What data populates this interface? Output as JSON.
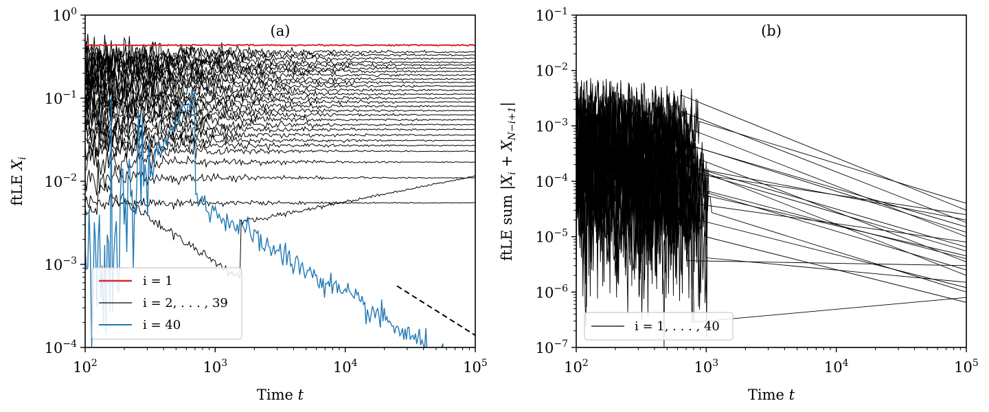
{
  "chart_data": [
    {
      "type": "line",
      "panel_label": "(a)",
      "xlabel": "Time t",
      "ylabel": "ftLE X_i",
      "x_scale": "log",
      "y_scale": "log",
      "xlim": [
        100,
        100000
      ],
      "ylim": [
        0.0001,
        1
      ],
      "x_tick_labels": [
        {
          "base": "10",
          "exp": "2",
          "value": 100
        },
        {
          "base": "10",
          "exp": "3",
          "value": 1000
        },
        {
          "base": "10",
          "exp": "4",
          "value": 10000
        },
        {
          "base": "10",
          "exp": "5",
          "value": 100000
        }
      ],
      "y_tick_labels": [
        {
          "base": "10",
          "exp": "0",
          "value": 1
        },
        {
          "base": "10",
          "exp": "−1",
          "value": 0.1
        },
        {
          "base": "10",
          "exp": "−2",
          "value": 0.01
        },
        {
          "base": "10",
          "exp": "−3",
          "value": 0.001
        },
        {
          "base": "10",
          "exp": "−4",
          "value": 0.0001
        }
      ],
      "legend_position": "lower-left",
      "legend": [
        {
          "label": "i = 1",
          "color": "#d62728"
        },
        {
          "label": "i = 2, . . . , 39",
          "color": "#000000"
        },
        {
          "label": "i = 40",
          "color": "#1f77b4"
        }
      ],
      "series": [
        {
          "name": "i = 1",
          "color": "#d62728",
          "x": [
            100,
            1000,
            10000,
            100000
          ],
          "y": [
            0.44,
            0.43,
            0.435,
            0.43
          ]
        },
        {
          "name": "i = 2, . . . , 39",
          "color": "#000000",
          "note_values_at_t_1e5": [
            0.36,
            0.33,
            0.3,
            0.27,
            0.25,
            0.23,
            0.21,
            0.19,
            0.17,
            0.155,
            0.14,
            0.125,
            0.112,
            0.1,
            0.09,
            0.08,
            0.071,
            0.063,
            0.055,
            0.048,
            0.042,
            0.036,
            0.031,
            0.027,
            0.023,
            0.017,
            0.011,
            0.0055
          ]
        },
        {
          "name": "i = 40",
          "color": "#1f77b4",
          "x": [
            100,
            200,
            400,
            700,
            1000,
            2000,
            5000,
            10000,
            30000,
            100000
          ],
          "y": [
            0.0003,
            0.002,
            0.004,
            0.006,
            0.005,
            0.002,
            0.0009,
            0.0005,
            0.00025,
            0.0001
          ]
        }
      ],
      "reference_line": {
        "style": "dashed",
        "color": "#000000",
        "x": [
          25000,
          100000
        ],
        "y": [
          0.00055,
          0.00014
        ]
      }
    },
    {
      "type": "line",
      "panel_label": "(b)",
      "xlabel": "Time t",
      "ylabel": "ftLE sum |X_i + X_{N−i+1}|",
      "x_scale": "log",
      "y_scale": "log",
      "xlim": [
        100,
        100000
      ],
      "ylim": [
        1e-07,
        0.1
      ],
      "x_tick_labels": [
        {
          "base": "10",
          "exp": "2",
          "value": 100
        },
        {
          "base": "10",
          "exp": "3",
          "value": 1000
        },
        {
          "base": "10",
          "exp": "4",
          "value": 10000
        },
        {
          "base": "10",
          "exp": "5",
          "value": 100000
        }
      ],
      "y_tick_labels": [
        {
          "base": "10",
          "exp": "−1",
          "value": 0.1
        },
        {
          "base": "10",
          "exp": "−2",
          "value": 0.01
        },
        {
          "base": "10",
          "exp": "−3",
          "value": 0.001
        },
        {
          "base": "10",
          "exp": "−4",
          "value": 0.0001
        },
        {
          "base": "10",
          "exp": "−5",
          "value": 1e-05
        },
        {
          "base": "10",
          "exp": "−6",
          "value": 1e-06
        },
        {
          "base": "10",
          "exp": "−7",
          "value": 1e-07
        }
      ],
      "legend_position": "lower-left",
      "legend": [
        {
          "label": "i = 1, . . . , 40",
          "color": "#000000"
        }
      ],
      "series": [
        {
          "name": "i = 1, . . . , 40",
          "color": "#000000",
          "note": "noisy decay 100–1000, then power-law ~1/t",
          "values_at_t_1e5": [
            4e-05,
            3e-05,
            2.5e-05,
            2e-05,
            1.8e-05,
            1.5e-05,
            1.2e-05,
            1e-05,
            8e-06,
            6.5e-06,
            5.5e-06,
            4.5e-06,
            4e-06,
            3.5e-06,
            3e-06,
            2.5e-06,
            2e-06,
            1.5e-06,
            1.2e-06,
            1e-06,
            8e-07,
            6.5e-07
          ]
        }
      ]
    }
  ]
}
